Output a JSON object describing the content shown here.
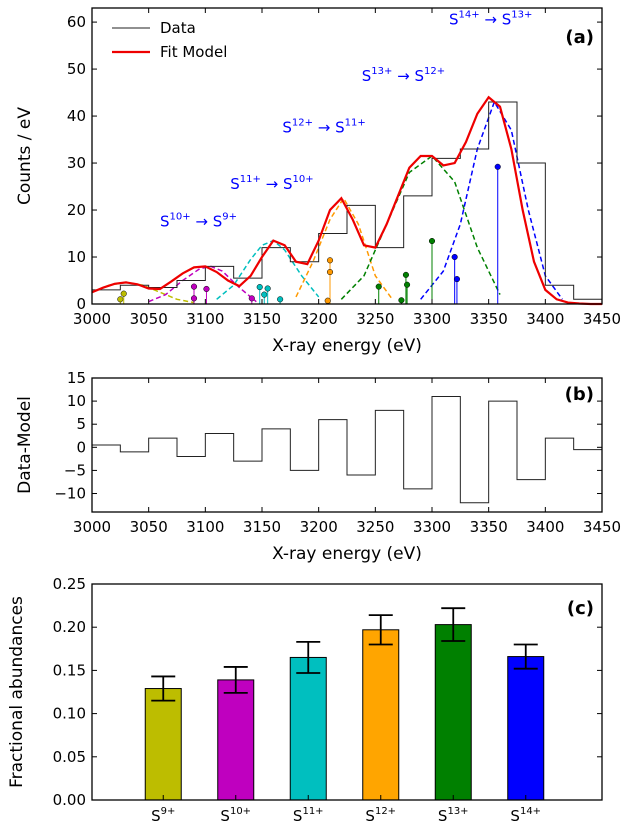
{
  "chart_data": [
    {
      "panel": "(a)",
      "type": "line",
      "xlabel": "X-ray energy (eV)",
      "ylabel": "Counts / eV",
      "xlim": [
        3000,
        3450
      ],
      "ylim": [
        0,
        63
      ],
      "xticks": [
        "3000",
        "3050",
        "3100",
        "3150",
        "3200",
        "3250",
        "3300",
        "3350",
        "3400",
        "3450"
      ],
      "yticks": [
        "0",
        "10",
        "20",
        "30",
        "40",
        "50",
        "60"
      ],
      "legend": {
        "position": "top-left",
        "entries": [
          "Data",
          "Fit Model"
        ]
      },
      "transition_labels": [
        {
          "base": "S",
          "upper": "10+",
          "arrow": " → ",
          "lower_base": "S",
          "lower": "9+",
          "x": 3060,
          "y": 16.5
        },
        {
          "base": "S",
          "upper": "11+",
          "arrow": " → ",
          "lower_base": "S",
          "lower": "10+",
          "x": 3122,
          "y": 24.5
        },
        {
          "base": "S",
          "upper": "12+",
          "arrow": " → ",
          "lower_base": "S",
          "lower": "11+",
          "x": 3168,
          "y": 36.5
        },
        {
          "base": "S",
          "upper": "13+",
          "arrow": " → ",
          "lower_base": "S",
          "lower": "12+",
          "x": 3238,
          "y": 47.5
        },
        {
          "base": "S",
          "upper": "14+",
          "arrow": " → ",
          "lower_base": "S",
          "lower": "13+",
          "x": 3315,
          "y": 59.5
        }
      ],
      "series": [
        {
          "name": "Data",
          "color": "#222222",
          "style": "step",
          "x": [
            3000,
            3025,
            3050,
            3075,
            3100,
            3125,
            3150,
            3175,
            3200,
            3225,
            3250,
            3275,
            3300,
            3325,
            3350,
            3375,
            3400,
            3425,
            3450
          ],
          "y": [
            3,
            4,
            3.5,
            5,
            8,
            5.5,
            12,
            9,
            15,
            21,
            12,
            23,
            31,
            33,
            43,
            30,
            4,
            1,
            0.5
          ]
        },
        {
          "name": "Fit Model",
          "color": "#ee0000",
          "style": "line",
          "x": [
            3000,
            3010,
            3020,
            3030,
            3040,
            3050,
            3060,
            3070,
            3080,
            3090,
            3100,
            3110,
            3120,
            3130,
            3140,
            3150,
            3160,
            3170,
            3180,
            3190,
            3200,
            3210,
            3220,
            3230,
            3240,
            3250,
            3260,
            3270,
            3280,
            3290,
            3300,
            3310,
            3320,
            3330,
            3340,
            3350,
            3360,
            3370,
            3380,
            3390,
            3400,
            3410,
            3420,
            3430,
            3440,
            3450
          ],
          "y": [
            2.5,
            3.5,
            4.3,
            4.6,
            4.2,
            3.3,
            3.2,
            4.8,
            6.5,
            7.8,
            8,
            6.8,
            5,
            3.8,
            6,
            10,
            13.5,
            12.5,
            9,
            8.5,
            13.5,
            20,
            22.5,
            18,
            12.5,
            12,
            17,
            23,
            29,
            31.5,
            31.5,
            29.5,
            30,
            34.5,
            40.5,
            44,
            42,
            33,
            20,
            9,
            3,
            1,
            0.3,
            0.1,
            0,
            0
          ]
        }
      ],
      "components": [
        {
          "name": "S9+",
          "color": "#bdbd00",
          "x": [
            3000,
            3015,
            3030,
            3045,
            3060,
            3075,
            3090
          ],
          "y": [
            2.5,
            4,
            4.6,
            4,
            2.5,
            1,
            0.3
          ]
        },
        {
          "name": "S10+",
          "color": "#bf00bf",
          "x": [
            3050,
            3065,
            3080,
            3095,
            3105,
            3115,
            3130,
            3145
          ],
          "y": [
            0.5,
            2,
            5,
            7.5,
            8,
            7,
            3.5,
            0.5
          ]
        },
        {
          "name": "S11+",
          "color": "#00bfbf",
          "x": [
            3110,
            3125,
            3140,
            3150,
            3160,
            3170,
            3185,
            3200
          ],
          "y": [
            1,
            4,
            9.5,
            12.5,
            13.5,
            11.5,
            6,
            1.5
          ]
        },
        {
          "name": "S12+",
          "color": "#ff9900",
          "x": [
            3180,
            3195,
            3210,
            3222,
            3235,
            3250,
            3265
          ],
          "y": [
            1.5,
            9,
            18,
            22.5,
            17,
            6,
            1
          ]
        },
        {
          "name": "S13+",
          "color": "#008000",
          "x": [
            3220,
            3240,
            3260,
            3280,
            3300,
            3320,
            3340,
            3360
          ],
          "y": [
            1,
            6,
            17,
            28,
            31.5,
            26,
            12,
            2
          ]
        },
        {
          "name": "S14+",
          "color": "#0000ff",
          "x": [
            3290,
            3310,
            3325,
            3340,
            3355,
            3370,
            3385,
            3400,
            3415
          ],
          "y": [
            1,
            7,
            17,
            33,
            43,
            37,
            20,
            6,
            1
          ]
        }
      ],
      "stems": [
        {
          "color": "#bdbd00",
          "points": [
            [
              3025,
              1.0
            ],
            [
              3028,
              2.2
            ]
          ]
        },
        {
          "color": "#bf00bf",
          "points": [
            [
              3090,
              3.7
            ],
            [
              3090,
              1.2
            ],
            [
              3101,
              3.2
            ],
            [
              3141,
              1.2
            ]
          ]
        },
        {
          "color": "#00bfbf",
          "points": [
            [
              3148,
              3.6
            ],
            [
              3152,
              2.0
            ],
            [
              3155,
              3.3
            ],
            [
              3166,
              1.0
            ]
          ]
        },
        {
          "color": "#ff9900",
          "points": [
            [
              3210,
              9.3
            ],
            [
              3210,
              6.8
            ],
            [
              3208,
              0.7
            ]
          ]
        },
        {
          "color": "#008000",
          "points": [
            [
              3253,
              3.7
            ],
            [
              3273,
              0.8
            ],
            [
              3277,
              6.2
            ],
            [
              3278,
              4.1
            ],
            [
              3300,
              13.4
            ]
          ]
        },
        {
          "color": "#0000ff",
          "points": [
            [
              3320,
              10.0
            ],
            [
              3322,
              5.3
            ],
            [
              3358,
              29.2
            ]
          ]
        }
      ]
    },
    {
      "panel": "(b)",
      "type": "line",
      "xlabel": "X-ray energy (eV)",
      "ylabel": "Data-Model",
      "xlim": [
        3000,
        3450
      ],
      "ylim": [
        -14,
        15
      ],
      "xticks": [
        "3000",
        "3050",
        "3100",
        "3150",
        "3200",
        "3250",
        "3300",
        "3350",
        "3400",
        "3450"
      ],
      "yticks": [
        "15",
        "10",
        "5",
        "0",
        "−5",
        "−10"
      ],
      "series": [
        {
          "name": "Data-Model",
          "color": "#222222",
          "style": "step",
          "x": [
            3000,
            3025,
            3050,
            3075,
            3100,
            3125,
            3150,
            3175,
            3200,
            3225,
            3250,
            3275,
            3300,
            3325,
            3350,
            3375,
            3400,
            3425,
            3450
          ],
          "y": [
            0.5,
            -1,
            2,
            -2,
            3,
            -3,
            4,
            -5,
            6,
            -6,
            8,
            -9,
            11,
            -12,
            10,
            -7,
            2,
            -0.5,
            0.3
          ]
        }
      ]
    },
    {
      "panel": "(c)",
      "type": "bar",
      "xlabel": "",
      "ylabel": "Fractional abundances",
      "ylim": [
        0,
        0.25
      ],
      "yticks": [
        "0.00",
        "0.05",
        "0.10",
        "0.15",
        "0.20",
        "0.25"
      ],
      "categories": [
        {
          "base": "S",
          "sup": "9+"
        },
        {
          "base": "S",
          "sup": "10+"
        },
        {
          "base": "S",
          "sup": "11+"
        },
        {
          "base": "S",
          "sup": "12+"
        },
        {
          "base": "S",
          "sup": "13+"
        },
        {
          "base": "S",
          "sup": "14+"
        }
      ],
      "values": [
        0.129,
        0.139,
        0.165,
        0.197,
        0.203,
        0.166
      ],
      "errors": [
        0.014,
        0.015,
        0.018,
        0.017,
        0.019,
        0.014
      ],
      "colors": [
        "#bdbd00",
        "#bf00bf",
        "#00bfbf",
        "#ffa500",
        "#008000",
        "#0000ff"
      ]
    }
  ]
}
